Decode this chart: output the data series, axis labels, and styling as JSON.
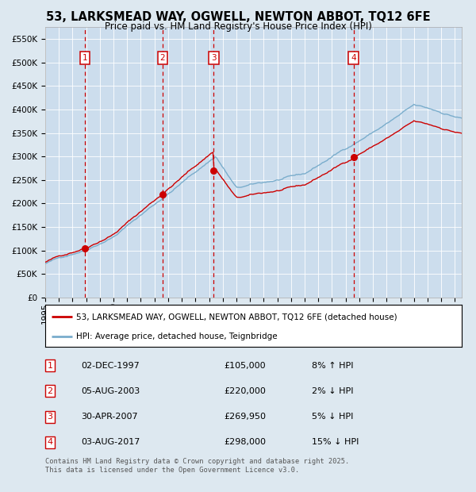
{
  "title": "53, LARKSMEAD WAY, OGWELL, NEWTON ABBOT, TQ12 6FE",
  "subtitle": "Price paid vs. HM Land Registry's House Price Index (HPI)",
  "legend_line1": "53, LARKSMEAD WAY, OGWELL, NEWTON ABBOT, TQ12 6FE (detached house)",
  "legend_line2": "HPI: Average price, detached house, Teignbridge",
  "footer": "Contains HM Land Registry data © Crown copyright and database right 2025.\nThis data is licensed under the Open Government Licence v3.0.",
  "transactions": [
    {
      "num": 1,
      "date": "02-DEC-1997",
      "price": 105000,
      "hpi_pct": "8% ↑ HPI"
    },
    {
      "num": 2,
      "date": "05-AUG-2003",
      "price": 220000,
      "hpi_pct": "2% ↓ HPI"
    },
    {
      "num": 3,
      "date": "30-APR-2007",
      "price": 269950,
      "hpi_pct": "5% ↓ HPI"
    },
    {
      "num": 4,
      "date": "03-AUG-2017",
      "price": 298000,
      "hpi_pct": "15% ↓ HPI"
    }
  ],
  "vline_dates": [
    1997.917,
    2003.583,
    2007.333,
    2017.583
  ],
  "marker_prices": [
    105000,
    220000,
    269950,
    298000
  ],
  "ylim": [
    0,
    575000
  ],
  "xlim_start": 1995.0,
  "xlim_end": 2025.5,
  "background_color": "#dde8f0",
  "plot_bg_color": "#ccdded",
  "red_line_color": "#cc0000",
  "blue_line_color": "#7aadcc",
  "vline_color": "#cc0000",
  "box_color": "#cc0000",
  "grid_color": "#ffffff",
  "title_fontsize": 10.5,
  "subtitle_fontsize": 8.5,
  "tick_fontsize": 7.5
}
